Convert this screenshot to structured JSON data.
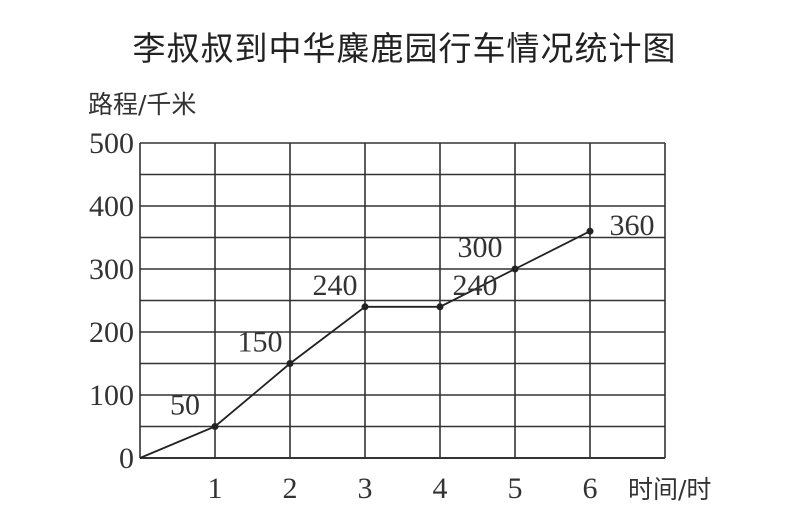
{
  "chart_data": {
    "type": "line",
    "title": "李叔叔到中华麋鹿园行车情况统计图",
    "xlabel": "时间/时",
    "ylabel": "路程/千米",
    "x": [
      0,
      1,
      2,
      3,
      4,
      5,
      6
    ],
    "values": [
      0,
      50,
      150,
      240,
      240,
      300,
      360
    ],
    "data_labels": [
      "",
      "50",
      "150",
      "240",
      "240",
      "300",
      "360"
    ],
    "x_ticks": [
      "1",
      "2",
      "3",
      "4",
      "5",
      "6"
    ],
    "y_ticks": [
      "0",
      "100",
      "200",
      "300",
      "400",
      "500"
    ],
    "xlim": [
      0,
      7
    ],
    "ylim": [
      0,
      500
    ],
    "grid": true,
    "line_color": "#222222"
  }
}
